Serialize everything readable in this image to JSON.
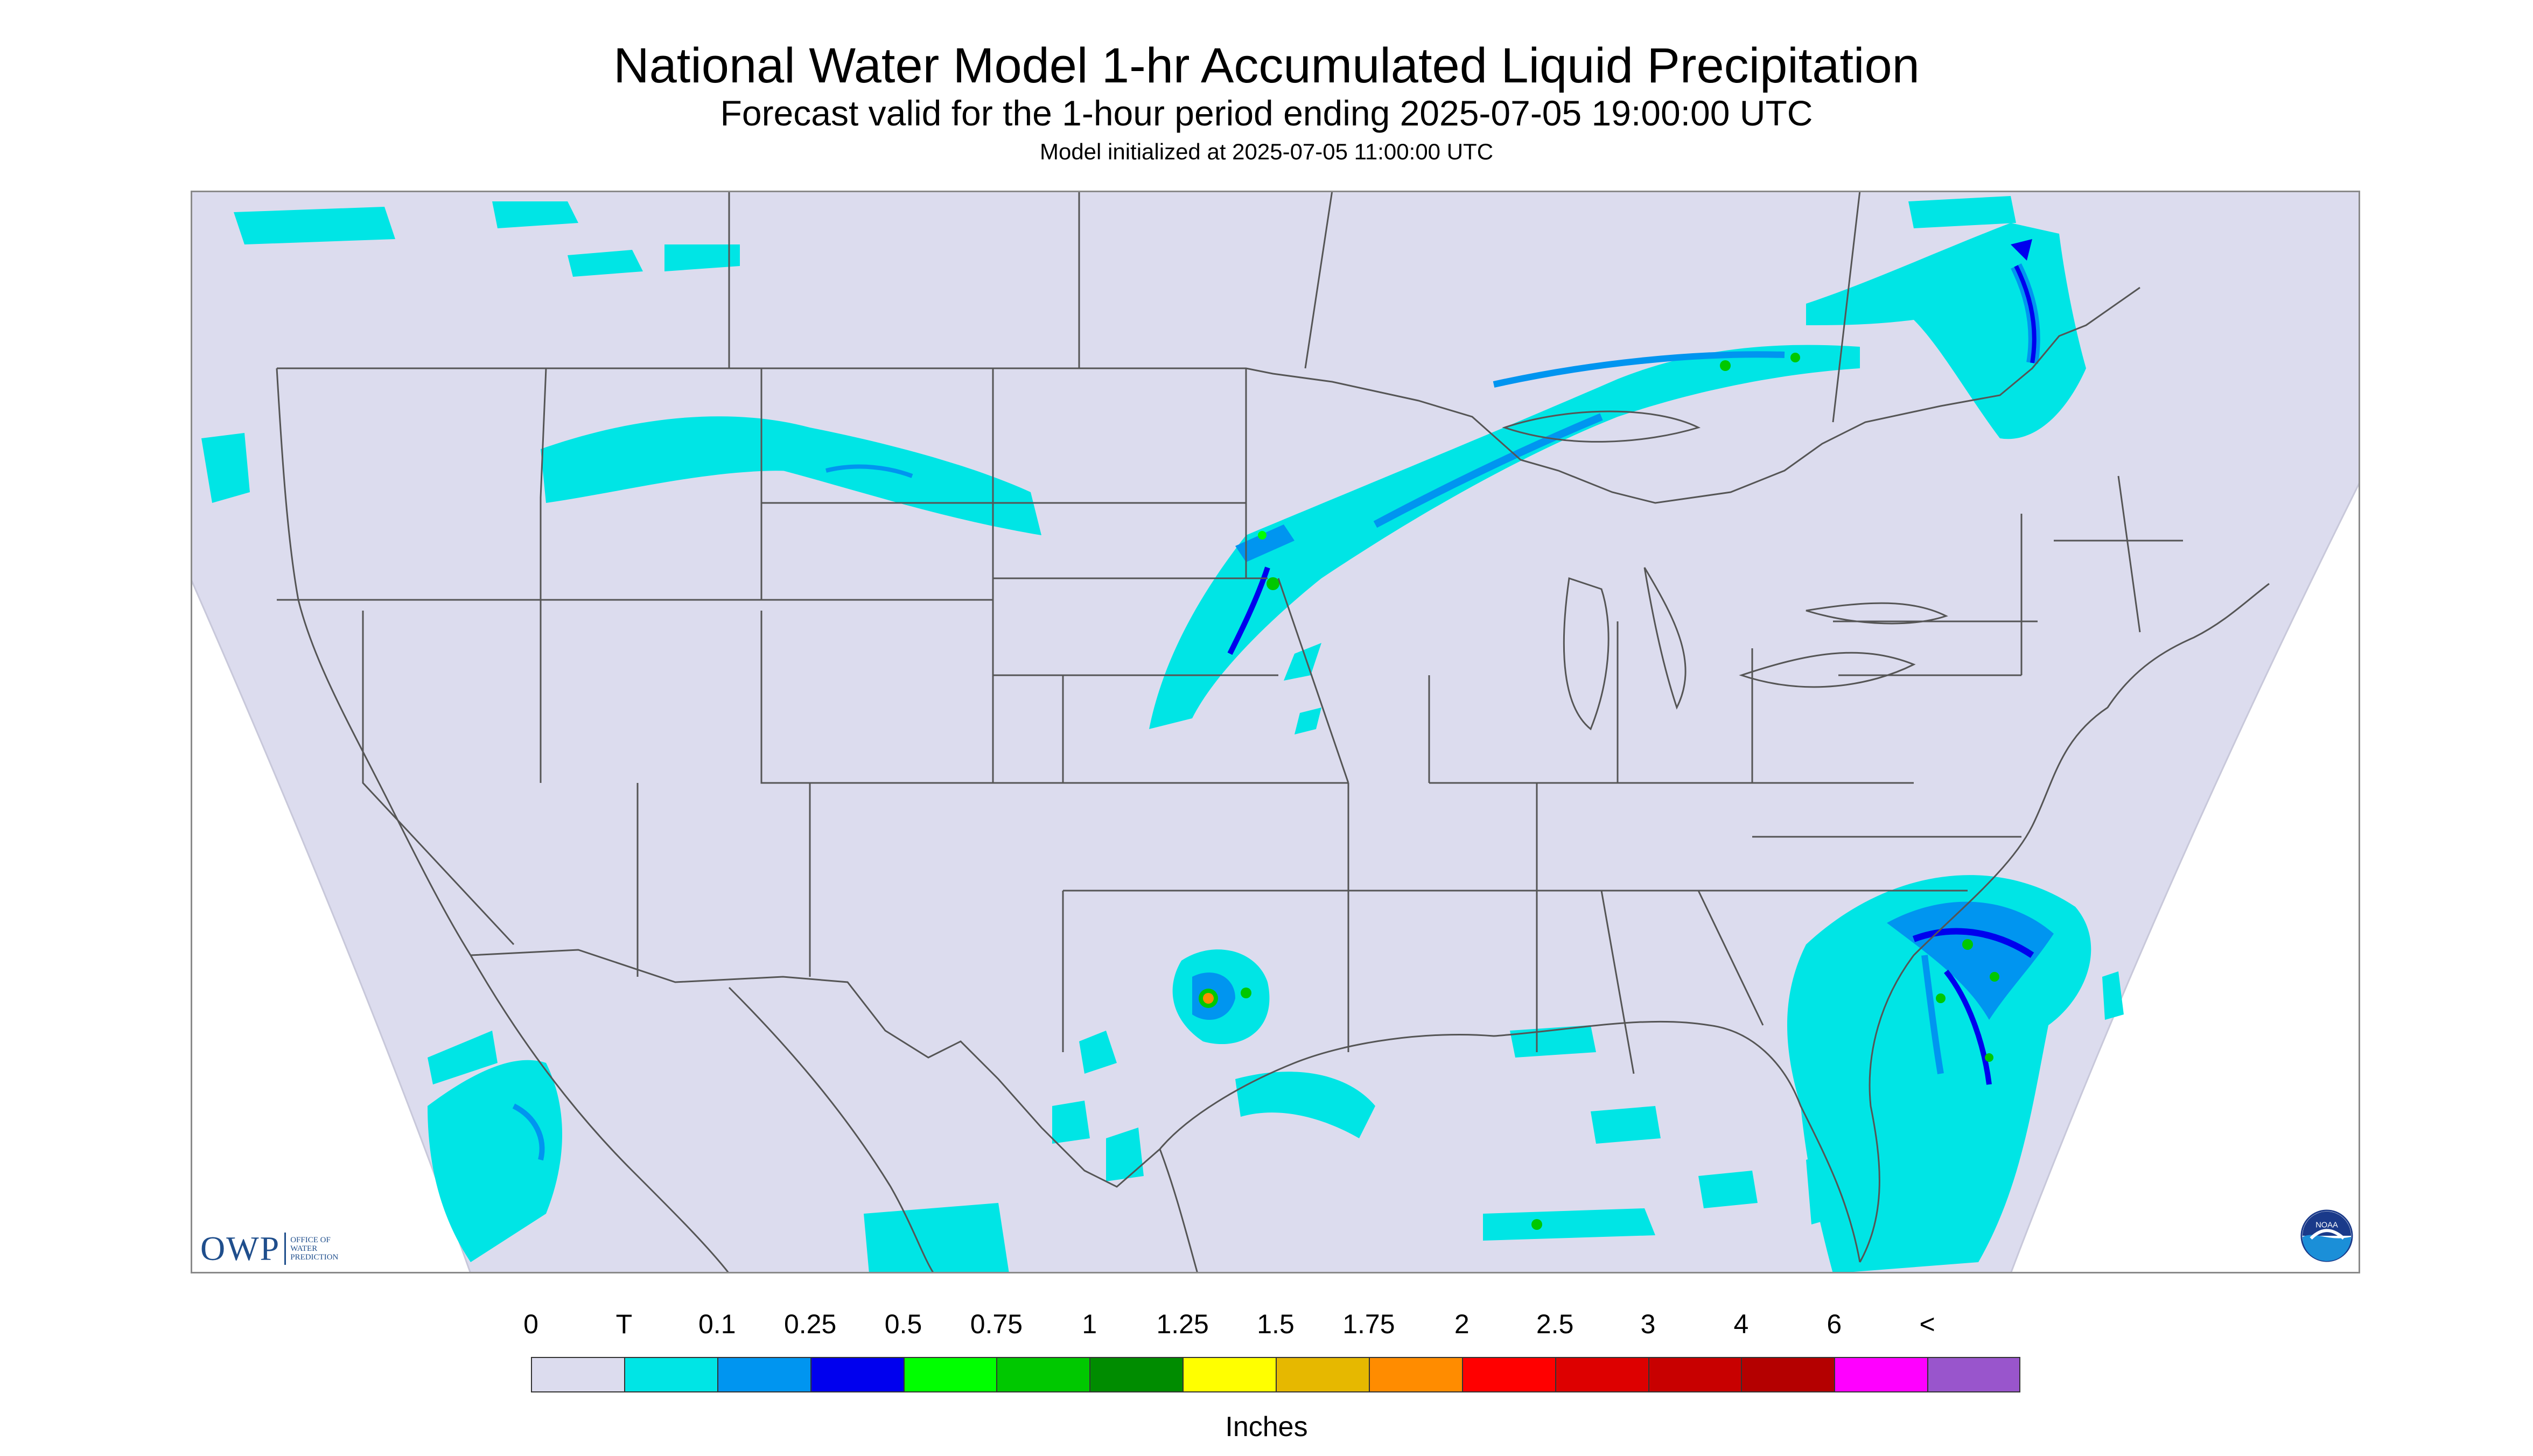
{
  "title": "National Water Model 1-hr Accumulated Liquid Precipitation",
  "subtitle": "Forecast valid for the 1-hour period ending 2025-07-05 19:00:00 UTC",
  "init_line": "Model initialized at 2025-07-05 11:00:00 UTC",
  "logo": {
    "acronym": "OWP",
    "line1": "OFFICE OF",
    "line2": "WATER",
    "line3": "PREDICTION",
    "agency": "NOAA"
  },
  "legend": {
    "labels": [
      "0",
      "T",
      "0.1",
      "0.25",
      "0.5",
      "0.75",
      "1",
      "1.25",
      "1.5",
      "1.75",
      "2",
      "2.5",
      "3",
      "4",
      "6",
      "<"
    ],
    "colors": [
      "#dcdcee",
      "#00e5e5",
      "#0095f0",
      "#0000ee",
      "#00ff00",
      "#00c800",
      "#008c00",
      "#ffff00",
      "#e6b800",
      "#ff8c00",
      "#ff0000",
      "#dd0000",
      "#c80000",
      "#b40000",
      "#ff00ff",
      "#9955cc"
    ],
    "units": "Inches"
  },
  "colors": {
    "background": "#dcdcee",
    "border_lines": "#555555",
    "frame": "#8a8a8a"
  }
}
